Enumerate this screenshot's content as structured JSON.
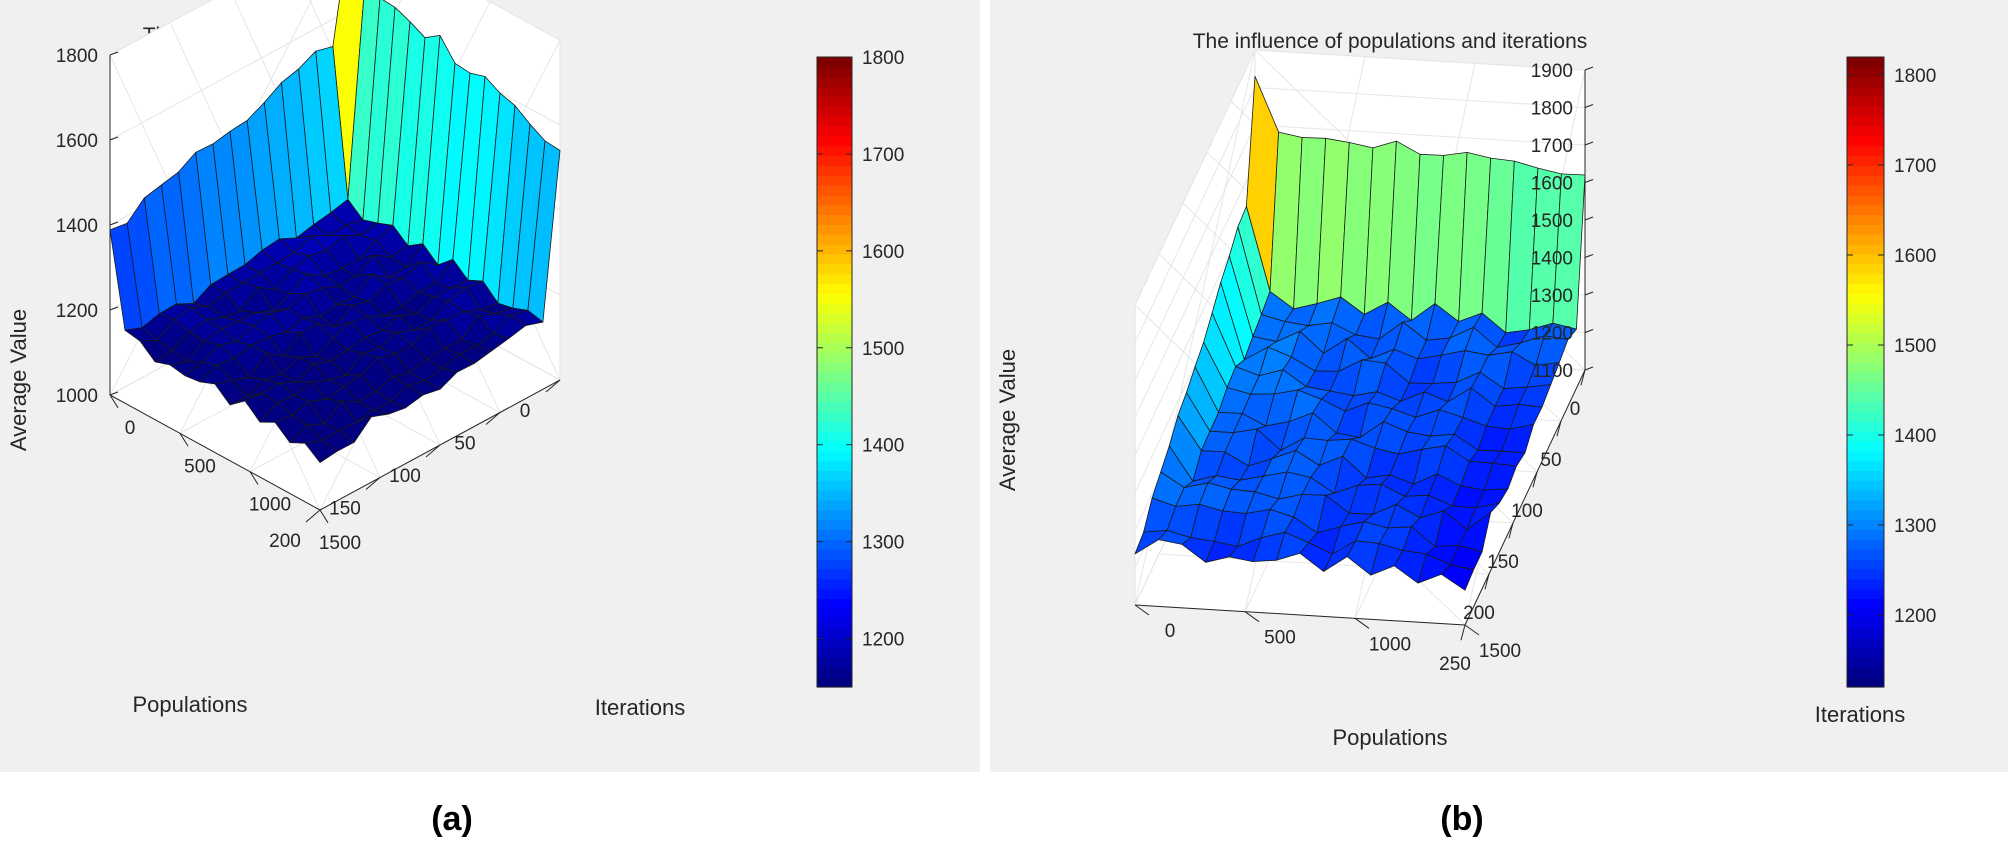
{
  "chart_data": [
    {
      "type": "surface3d",
      "panel_label": "(a)",
      "title": "The influence of populations and iterations",
      "xlabel": "Populations",
      "ylabel": "Iterations",
      "zlabel": "Average Value",
      "x_ticks": [
        "0",
        "50",
        "100",
        "150",
        "200"
      ],
      "y_ticks": [
        "0",
        "500",
        "1000",
        "1500"
      ],
      "z_ticks": [
        "1000",
        "1200",
        "1400",
        "1600",
        "1800"
      ],
      "xlim": [
        0,
        200
      ],
      "ylim": [
        0,
        1500
      ],
      "zlim": [
        1000,
        1800
      ],
      "colorbar": {
        "ticks": [
          "1200",
          "1300",
          "1400",
          "1500",
          "1600",
          "1700",
          "1800"
        ],
        "range": [
          1150,
          1800
        ]
      },
      "colormap": "jet",
      "surface_description": "Surface is ~1800 at populations=0/iterations=0, ~1540-1640 along the iterations axis at populations=0, ~1380-1560 along the populations axis at iterations=0, and ~1100-1200 elsewhere"
    },
    {
      "type": "surface3d",
      "panel_label": "(b)",
      "title": "The influence of populations and iterations",
      "xlabel": "Populations",
      "ylabel": "Iterations",
      "zlabel": "Average Value",
      "x_ticks": [
        "0",
        "50",
        "100",
        "150",
        "200",
        "250"
      ],
      "y_ticks": [
        "0",
        "500",
        "1000",
        "1500"
      ],
      "z_ticks": [
        "1100",
        "1200",
        "1300",
        "1400",
        "1500",
        "1600",
        "1700",
        "1800",
        "1900"
      ],
      "xlim": [
        0,
        250
      ],
      "ylim": [
        0,
        1500
      ],
      "zlim": [
        1100,
        1900
      ],
      "colorbar": {
        "ticks": [
          "1200",
          "1300",
          "1400",
          "1500",
          "1600",
          "1700",
          "1800"
        ],
        "range": [
          1120,
          1820
        ]
      },
      "colormap": "jet",
      "surface_description": "Surface is ~1830 at populations=0/iterations=0, ~1620-1700 along the iterations axis at populations=0, ~1230-1560 along the populations axis at iterations=0, and ~1150-1300 elsewhere"
    }
  ]
}
